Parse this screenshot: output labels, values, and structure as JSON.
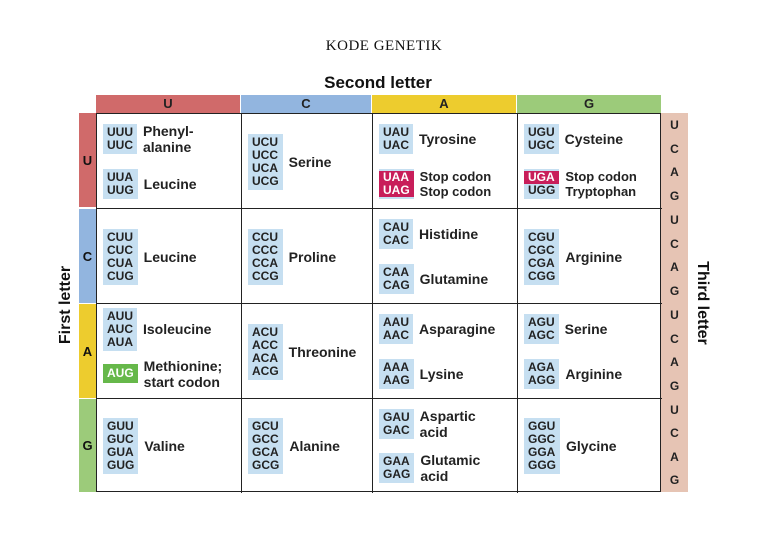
{
  "title": "KODE GENETIK",
  "second_letter_title": "Second letter",
  "first_letter_title": "First letter",
  "third_letter_title": "Third letter",
  "colors": {
    "U": "#d06a6a",
    "C": "#92b5df",
    "A": "#edcc2e",
    "G": "#9ccb7a",
    "codon_bg": "#c6dff1",
    "stop": "#c81e5a",
    "start": "#66b84a",
    "third_bar": "#e6c4b4"
  },
  "second_letters": [
    "U",
    "C",
    "A",
    "G"
  ],
  "first_letters": [
    "U",
    "C",
    "A",
    "G"
  ],
  "third_letters": [
    "U",
    "C",
    "A",
    "G",
    "U",
    "C",
    "A",
    "G",
    "U",
    "C",
    "A",
    "G",
    "U",
    "C",
    "A",
    "G"
  ],
  "rows": [
    {
      "first": "U",
      "cells": [
        {
          "groups": [
            {
              "codons": [
                {
                  "text": "UUU"
                },
                {
                  "text": "UUC"
                }
              ],
              "label": "Phenyl-\nalanine"
            },
            {
              "codons": [
                {
                  "text": "UUA"
                },
                {
                  "text": "UUG"
                }
              ],
              "label": "Leucine"
            }
          ]
        },
        {
          "groups": [
            {
              "codons": [
                {
                  "text": "UCU"
                },
                {
                  "text": "UCC"
                },
                {
                  "text": "UCA"
                },
                {
                  "text": "UCG"
                }
              ],
              "label": "Serine"
            }
          ]
        },
        {
          "groups": [
            {
              "codons": [
                {
                  "text": "UAU"
                },
                {
                  "text": "UAC"
                }
              ],
              "label": "Tyrosine"
            },
            {
              "codons": [
                {
                  "text": "UAA",
                  "kind": "stop"
                },
                {
                  "text": "UAG",
                  "kind": "stop"
                }
              ],
              "label": "Stop codon\nStop codon",
              "small": true
            }
          ]
        },
        {
          "groups": [
            {
              "codons": [
                {
                  "text": "UGU"
                },
                {
                  "text": "UGC"
                }
              ],
              "label": "Cysteine"
            },
            {
              "codons": [
                {
                  "text": "UGA",
                  "kind": "stop"
                },
                {
                  "text": "UGG"
                }
              ],
              "label": "Stop codon\nTryptophan",
              "small": true
            }
          ]
        }
      ]
    },
    {
      "first": "C",
      "cells": [
        {
          "groups": [
            {
              "codons": [
                {
                  "text": "CUU"
                },
                {
                  "text": "CUC"
                },
                {
                  "text": "CUA"
                },
                {
                  "text": "CUG"
                }
              ],
              "label": "Leucine"
            }
          ]
        },
        {
          "groups": [
            {
              "codons": [
                {
                  "text": "CCU"
                },
                {
                  "text": "CCC"
                },
                {
                  "text": "CCA"
                },
                {
                  "text": "CCG"
                }
              ],
              "label": "Proline"
            }
          ]
        },
        {
          "groups": [
            {
              "codons": [
                {
                  "text": "CAU"
                },
                {
                  "text": "CAC"
                }
              ],
              "label": "Histidine"
            },
            {
              "codons": [
                {
                  "text": "CAA"
                },
                {
                  "text": "CAG"
                }
              ],
              "label": "Glutamine"
            }
          ]
        },
        {
          "groups": [
            {
              "codons": [
                {
                  "text": "CGU"
                },
                {
                  "text": "CGC"
                },
                {
                  "text": "CGA"
                },
                {
                  "text": "CGG"
                }
              ],
              "label": "Arginine"
            }
          ]
        }
      ]
    },
    {
      "first": "A",
      "cells": [
        {
          "groups": [
            {
              "codons": [
                {
                  "text": "AUU"
                },
                {
                  "text": "AUC"
                },
                {
                  "text": "AUA"
                }
              ],
              "label": "Isoleucine"
            },
            {
              "codons": [
                {
                  "text": "AUG",
                  "kind": "start"
                }
              ],
              "label": "Methionine;\nstart codon"
            }
          ]
        },
        {
          "groups": [
            {
              "codons": [
                {
                  "text": "ACU"
                },
                {
                  "text": "ACC"
                },
                {
                  "text": "ACA"
                },
                {
                  "text": "ACG"
                }
              ],
              "label": "Threonine"
            }
          ]
        },
        {
          "groups": [
            {
              "codons": [
                {
                  "text": "AAU"
                },
                {
                  "text": "AAC"
                }
              ],
              "label": "Asparagine"
            },
            {
              "codons": [
                {
                  "text": "AAA"
                },
                {
                  "text": "AAG"
                }
              ],
              "label": "Lysine"
            }
          ]
        },
        {
          "groups": [
            {
              "codons": [
                {
                  "text": "AGU"
                },
                {
                  "text": "AGC"
                }
              ],
              "label": "Serine"
            },
            {
              "codons": [
                {
                  "text": "AGA"
                },
                {
                  "text": "AGG"
                }
              ],
              "label": "Arginine"
            }
          ]
        }
      ]
    },
    {
      "first": "G",
      "cells": [
        {
          "groups": [
            {
              "codons": [
                {
                  "text": "GUU"
                },
                {
                  "text": "GUC"
                },
                {
                  "text": "GUA"
                },
                {
                  "text": "GUG"
                }
              ],
              "label": "Valine"
            }
          ]
        },
        {
          "groups": [
            {
              "codons": [
                {
                  "text": "GCU"
                },
                {
                  "text": "GCC"
                },
                {
                  "text": "GCA"
                },
                {
                  "text": "GCG"
                }
              ],
              "label": "Alanine"
            }
          ]
        },
        {
          "groups": [
            {
              "codons": [
                {
                  "text": "GAU"
                },
                {
                  "text": "GAC"
                }
              ],
              "label": "Aspartic\nacid"
            },
            {
              "codons": [
                {
                  "text": "GAA"
                },
                {
                  "text": "GAG"
                }
              ],
              "label": "Glutamic\nacid"
            }
          ]
        },
        {
          "groups": [
            {
              "codons": [
                {
                  "text": "GGU"
                },
                {
                  "text": "GGC"
                },
                {
                  "text": "GGA"
                },
                {
                  "text": "GGG"
                }
              ],
              "label": "Glycine"
            }
          ]
        }
      ]
    }
  ]
}
